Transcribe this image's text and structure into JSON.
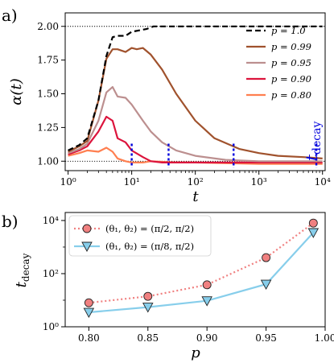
{
  "chart_data": [
    {
      "type": "line",
      "panel_label": "a)",
      "xlabel": "t",
      "ylabel": "α(t)",
      "xscale": "log",
      "xlim": [
        0.9,
        11000
      ],
      "ylim": [
        0.93,
        2.1
      ],
      "xticks": [
        1,
        10,
        100,
        1000,
        10000
      ],
      "xtick_labels": [
        "10⁰",
        "10¹",
        "10²",
        "10³",
        "10⁴"
      ],
      "yticks": [
        1.0,
        1.25,
        1.5,
        1.75,
        2.0
      ],
      "ytick_labels": [
        "1.00",
        "1.25",
        "1.50",
        "1.75",
        "2.00"
      ],
      "reference_lines": [
        1.0,
        2.0
      ],
      "legend_position": "upper-right",
      "annotation": {
        "text": "t",
        "subscript": "decay",
        "color": "#0000dd"
      },
      "decay_markers": [
        10,
        38,
        400,
        8000
      ],
      "series": [
        {
          "name": "p = 1.0",
          "color": "#000000",
          "dash": "7,4",
          "x": [
            1,
            1.5,
            2,
            3,
            4,
            5,
            6,
            8,
            10,
            13,
            17,
            22,
            30,
            50,
            100,
            1000,
            10000
          ],
          "y": [
            1.08,
            1.12,
            1.17,
            1.45,
            1.78,
            1.92,
            1.93,
            1.93,
            1.96,
            1.97,
            1.98,
            2.0,
            2.0,
            2.0,
            2.0,
            2.0,
            2.0
          ]
        },
        {
          "name": "p = 0.99",
          "color": "#a0522d",
          "dash": "",
          "x": [
            1,
            1.5,
            2,
            3,
            4,
            5,
            6,
            8,
            10,
            12,
            15,
            20,
            30,
            50,
            100,
            200,
            500,
            1000,
            2000,
            5000,
            10000
          ],
          "y": [
            1.07,
            1.11,
            1.15,
            1.45,
            1.76,
            1.83,
            1.83,
            1.81,
            1.84,
            1.83,
            1.84,
            1.79,
            1.68,
            1.5,
            1.3,
            1.17,
            1.09,
            1.06,
            1.04,
            1.03,
            1.02
          ]
        },
        {
          "name": "p = 0.95",
          "color": "#bc8f8f",
          "dash": "",
          "x": [
            1,
            1.5,
            2,
            3,
            4,
            5,
            6,
            8,
            10,
            15,
            20,
            30,
            50,
            100,
            300,
            1000,
            10000
          ],
          "y": [
            1.06,
            1.09,
            1.13,
            1.3,
            1.51,
            1.55,
            1.48,
            1.47,
            1.42,
            1.3,
            1.22,
            1.14,
            1.08,
            1.04,
            1.01,
            1.0,
            1.0
          ]
        },
        {
          "name": "p = 0.90",
          "color": "#dc143c",
          "dash": "",
          "x": [
            1,
            1.5,
            2,
            3,
            4,
            5,
            6,
            8,
            10,
            15,
            20,
            30,
            50,
            100,
            1000,
            10000
          ],
          "y": [
            1.05,
            1.08,
            1.11,
            1.22,
            1.33,
            1.3,
            1.17,
            1.14,
            1.08,
            1.03,
            1.0,
            0.99,
            0.99,
            0.99,
            0.99,
            0.99
          ]
        },
        {
          "name": "p = 0.80",
          "color": "#ff7f50",
          "dash": "",
          "x": [
            1,
            1.5,
            2,
            3,
            4,
            5,
            6,
            8,
            10,
            15,
            20,
            50,
            100,
            1000,
            10000
          ],
          "y": [
            1.04,
            1.06,
            1.08,
            1.07,
            1.1,
            1.07,
            1.02,
            1.0,
            0.99,
            0.99,
            1.0,
            0.99,
            0.99,
            0.98,
            0.98
          ]
        }
      ]
    },
    {
      "type": "line",
      "panel_label": "b)",
      "xlabel": "p",
      "ylabel": "t",
      "ylabel_subscript": "decay",
      "yscale": "log",
      "xlim": [
        0.78,
        1.0
      ],
      "ylim": [
        1,
        20000
      ],
      "xticks": [
        0.8,
        0.85,
        0.9,
        0.95,
        1.0
      ],
      "xtick_labels": [
        "0.80",
        "0.85",
        "0.90",
        "0.95",
        "1.00"
      ],
      "yticks": [
        1,
        100,
        10000
      ],
      "ytick_labels": [
        "10⁰",
        "10²",
        "10⁴"
      ],
      "legend_position": "upper-left",
      "series": [
        {
          "name": "(θ₁, θ₂) = (π/2, π/2)",
          "color": "#f08080",
          "dash": "2,3",
          "marker": "circle",
          "x": [
            0.8,
            0.85,
            0.9,
            0.95,
            0.99
          ],
          "y": [
            8,
            14,
            38,
            400,
            8000
          ]
        },
        {
          "name": "(θ₁, θ₂) = (π/8, π/2)",
          "color": "#87ceeb",
          "dash": "",
          "marker": "triangle",
          "x": [
            0.8,
            0.85,
            0.9,
            0.95,
            0.99
          ],
          "y": [
            3.5,
            5.5,
            9.5,
            40,
            3500
          ]
        }
      ]
    }
  ]
}
